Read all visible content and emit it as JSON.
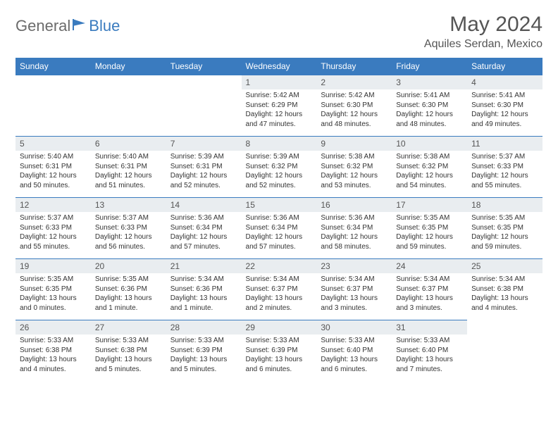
{
  "brand": {
    "part1": "General",
    "part2": "Blue"
  },
  "title": "May 2024",
  "location": "Aquiles Serdan, Mexico",
  "colors": {
    "accent": "#3a7bbf",
    "header_text": "#ffffff",
    "daynum_bg": "#e9edf0",
    "body_text": "#333333",
    "muted_text": "#555555",
    "page_bg": "#ffffff"
  },
  "daysOfWeek": [
    "Sunday",
    "Monday",
    "Tuesday",
    "Wednesday",
    "Thursday",
    "Friday",
    "Saturday"
  ],
  "weeks": [
    [
      null,
      null,
      null,
      {
        "n": "1",
        "sr": "5:42 AM",
        "ss": "6:29 PM",
        "dl": "12 hours and 47 minutes."
      },
      {
        "n": "2",
        "sr": "5:42 AM",
        "ss": "6:30 PM",
        "dl": "12 hours and 48 minutes."
      },
      {
        "n": "3",
        "sr": "5:41 AM",
        "ss": "6:30 PM",
        "dl": "12 hours and 48 minutes."
      },
      {
        "n": "4",
        "sr": "5:41 AM",
        "ss": "6:30 PM",
        "dl": "12 hours and 49 minutes."
      }
    ],
    [
      {
        "n": "5",
        "sr": "5:40 AM",
        "ss": "6:31 PM",
        "dl": "12 hours and 50 minutes."
      },
      {
        "n": "6",
        "sr": "5:40 AM",
        "ss": "6:31 PM",
        "dl": "12 hours and 51 minutes."
      },
      {
        "n": "7",
        "sr": "5:39 AM",
        "ss": "6:31 PM",
        "dl": "12 hours and 52 minutes."
      },
      {
        "n": "8",
        "sr": "5:39 AM",
        "ss": "6:32 PM",
        "dl": "12 hours and 52 minutes."
      },
      {
        "n": "9",
        "sr": "5:38 AM",
        "ss": "6:32 PM",
        "dl": "12 hours and 53 minutes."
      },
      {
        "n": "10",
        "sr": "5:38 AM",
        "ss": "6:32 PM",
        "dl": "12 hours and 54 minutes."
      },
      {
        "n": "11",
        "sr": "5:37 AM",
        "ss": "6:33 PM",
        "dl": "12 hours and 55 minutes."
      }
    ],
    [
      {
        "n": "12",
        "sr": "5:37 AM",
        "ss": "6:33 PM",
        "dl": "12 hours and 55 minutes."
      },
      {
        "n": "13",
        "sr": "5:37 AM",
        "ss": "6:33 PM",
        "dl": "12 hours and 56 minutes."
      },
      {
        "n": "14",
        "sr": "5:36 AM",
        "ss": "6:34 PM",
        "dl": "12 hours and 57 minutes."
      },
      {
        "n": "15",
        "sr": "5:36 AM",
        "ss": "6:34 PM",
        "dl": "12 hours and 57 minutes."
      },
      {
        "n": "16",
        "sr": "5:36 AM",
        "ss": "6:34 PM",
        "dl": "12 hours and 58 minutes."
      },
      {
        "n": "17",
        "sr": "5:35 AM",
        "ss": "6:35 PM",
        "dl": "12 hours and 59 minutes."
      },
      {
        "n": "18",
        "sr": "5:35 AM",
        "ss": "6:35 PM",
        "dl": "12 hours and 59 minutes."
      }
    ],
    [
      {
        "n": "19",
        "sr": "5:35 AM",
        "ss": "6:35 PM",
        "dl": "13 hours and 0 minutes."
      },
      {
        "n": "20",
        "sr": "5:35 AM",
        "ss": "6:36 PM",
        "dl": "13 hours and 1 minute."
      },
      {
        "n": "21",
        "sr": "5:34 AM",
        "ss": "6:36 PM",
        "dl": "13 hours and 1 minute."
      },
      {
        "n": "22",
        "sr": "5:34 AM",
        "ss": "6:37 PM",
        "dl": "13 hours and 2 minutes."
      },
      {
        "n": "23",
        "sr": "5:34 AM",
        "ss": "6:37 PM",
        "dl": "13 hours and 3 minutes."
      },
      {
        "n": "24",
        "sr": "5:34 AM",
        "ss": "6:37 PM",
        "dl": "13 hours and 3 minutes."
      },
      {
        "n": "25",
        "sr": "5:34 AM",
        "ss": "6:38 PM",
        "dl": "13 hours and 4 minutes."
      }
    ],
    [
      {
        "n": "26",
        "sr": "5:33 AM",
        "ss": "6:38 PM",
        "dl": "13 hours and 4 minutes."
      },
      {
        "n": "27",
        "sr": "5:33 AM",
        "ss": "6:38 PM",
        "dl": "13 hours and 5 minutes."
      },
      {
        "n": "28",
        "sr": "5:33 AM",
        "ss": "6:39 PM",
        "dl": "13 hours and 5 minutes."
      },
      {
        "n": "29",
        "sr": "5:33 AM",
        "ss": "6:39 PM",
        "dl": "13 hours and 6 minutes."
      },
      {
        "n": "30",
        "sr": "5:33 AM",
        "ss": "6:40 PM",
        "dl": "13 hours and 6 minutes."
      },
      {
        "n": "31",
        "sr": "5:33 AM",
        "ss": "6:40 PM",
        "dl": "13 hours and 7 minutes."
      },
      null
    ]
  ],
  "labels": {
    "sunrise": "Sunrise:",
    "sunset": "Sunset:",
    "daylight": "Daylight:"
  }
}
